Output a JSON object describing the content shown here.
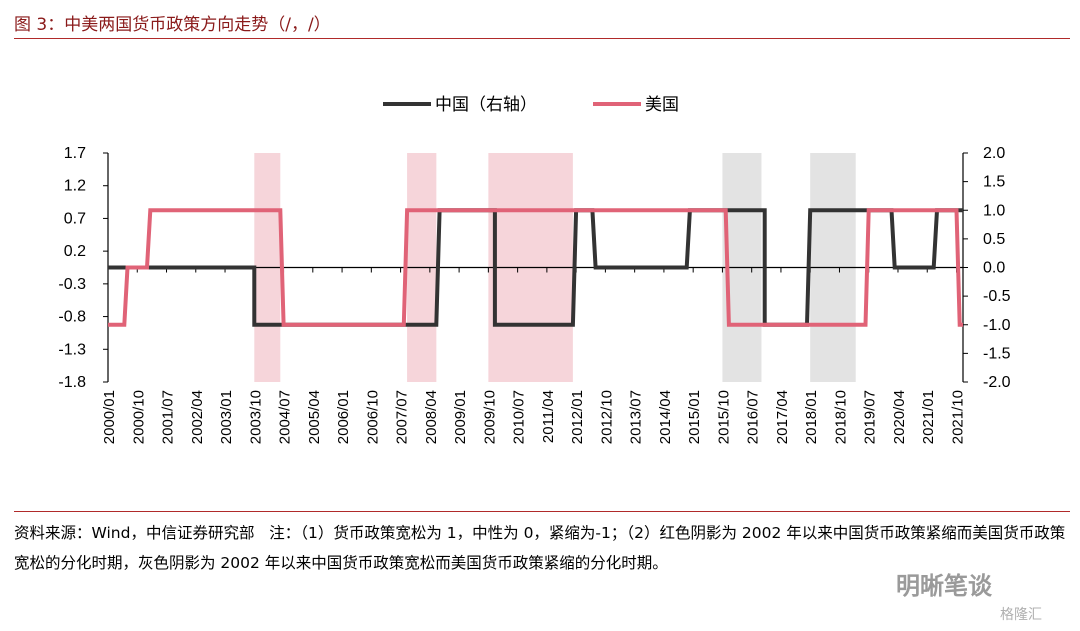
{
  "title": "图 3：中美两国货币政策方向走势（/，/）",
  "footnote": "资料来源：Wind，中信证券研究部   注：（1）货币政策宽松为 1，中性为 0，紧缩为-1；（2）红色阴影为 2002 年以来中国货币政策紧缩而美国货币政策宽松的分化时期，灰色阴影为 2002 年以来中国货币政策宽松而美国货币政策紧缩的分化时期。",
  "watermark": "明晰笔谈",
  "watermark2": "格隆汇",
  "chart_data": {
    "type": "line",
    "x_tick_labels": [
      "2000/01",
      "2000/10",
      "2001/07",
      "2002/04",
      "2003/01",
      "2003/10",
      "2004/07",
      "2005/04",
      "2006/01",
      "2006/10",
      "2007/07",
      "2008/04",
      "2009/01",
      "2009/10",
      "2010/07",
      "2011/04",
      "2012/01",
      "2012/10",
      "2013/07",
      "2014/04",
      "2015/01",
      "2015/10",
      "2016/07",
      "2017/04",
      "2018/01",
      "2018/10",
      "2019/07",
      "2020/04",
      "2021/01",
      "2021/10"
    ],
    "y_left_ticks": [
      "1.7",
      "1.2",
      "0.7",
      "0.2",
      "-0.3",
      "-0.8",
      "-1.3",
      "-1.8"
    ],
    "y_right_ticks": [
      "2.0",
      "1.5",
      "1.0",
      "0.5",
      "0.0",
      "-0.5",
      "-1.0",
      "-1.5",
      "-2.0"
    ],
    "ylim_left": [
      -1.8,
      1.7
    ],
    "ylim_right": [
      -2.0,
      2.0
    ],
    "legend_position": "top-center",
    "colors": {
      "china": "#333333",
      "us": "#e06377",
      "red_shade": "#f6d5da",
      "gray_shade": "#e3e3e3"
    },
    "shaded_periods": [
      {
        "type": "red",
        "start": "2003/10",
        "end": "2004/06"
      },
      {
        "type": "red",
        "start": "2007/09",
        "end": "2008/06"
      },
      {
        "type": "red",
        "start": "2009/10",
        "end": "2011/12"
      },
      {
        "type": "gray",
        "start": "2015/10",
        "end": "2016/10"
      },
      {
        "type": "gray",
        "start": "2018/01",
        "end": "2019/03"
      }
    ],
    "series": [
      {
        "name": "中国（右轴）",
        "axis": "right",
        "points": [
          [
            "2000/01",
            0
          ],
          [
            "2003/10",
            0
          ],
          [
            "2003/10",
            -1
          ],
          [
            "2008/06",
            -1
          ],
          [
            "2008/07",
            1
          ],
          [
            "2009/12",
            1
          ],
          [
            "2009/12",
            -1
          ],
          [
            "2011/12",
            -1
          ],
          [
            "2012/01",
            1
          ],
          [
            "2012/06",
            1
          ],
          [
            "2012/07",
            0
          ],
          [
            "2014/11",
            0
          ],
          [
            "2014/12",
            1
          ],
          [
            "2016/11",
            1
          ],
          [
            "2016/11",
            -1
          ],
          [
            "2017/12",
            -1
          ],
          [
            "2018/01",
            1
          ],
          [
            "2020/02",
            1
          ],
          [
            "2020/03",
            0
          ],
          [
            "2021/03",
            0
          ],
          [
            "2021/04",
            1
          ],
          [
            "2021/12",
            1
          ]
        ]
      },
      {
        "name": "美国",
        "axis": "right",
        "points": [
          [
            "2000/01",
            -1
          ],
          [
            "2000/06",
            -1
          ],
          [
            "2000/07",
            0
          ],
          [
            "2001/01",
            0
          ],
          [
            "2001/02",
            1
          ],
          [
            "2004/06",
            1
          ],
          [
            "2004/07",
            -1
          ],
          [
            "2007/08",
            -1
          ],
          [
            "2007/09",
            1
          ],
          [
            "2015/11",
            1
          ],
          [
            "2015/12",
            -1
          ],
          [
            "2019/06",
            -1
          ],
          [
            "2019/07",
            1
          ],
          [
            "2021/10",
            1
          ],
          [
            "2021/11",
            -1
          ],
          [
            "2021/12",
            -1
          ]
        ]
      }
    ]
  }
}
